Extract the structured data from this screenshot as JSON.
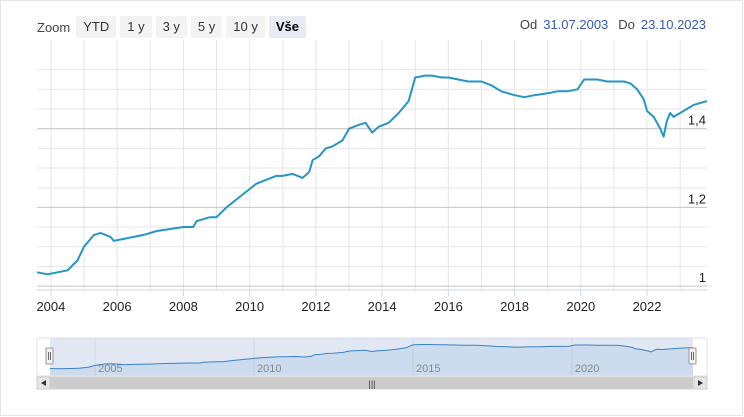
{
  "zoom": {
    "label": "Zoom",
    "buttons": [
      "YTD",
      "1 y",
      "3 y",
      "5 y",
      "10 y",
      "Vše"
    ],
    "active_index": 5
  },
  "range": {
    "from_label": "Od",
    "from_value": "31.07.2003",
    "to_label": "Do",
    "to_value": "23.10.2023"
  },
  "colors": {
    "line": "#2596c4",
    "grid": "#e6e6e6",
    "navigator_fill": "#c9d3ea",
    "navigator_line": "#3a82c4"
  },
  "navigator": {
    "labels": [
      "2005",
      "2010",
      "2015",
      "2020"
    ],
    "scrollbar_grip": "|||"
  },
  "chart_data": {
    "type": "line",
    "title": "",
    "xlabel": "",
    "ylabel": "",
    "x_ticks": [
      "2004",
      "2006",
      "2008",
      "2010",
      "2012",
      "2014",
      "2016",
      "2018",
      "2020",
      "2022"
    ],
    "y_ticks": [
      "1",
      "1,2",
      "1,4"
    ],
    "xlim": [
      2003.58,
      2023.81
    ],
    "ylim": [
      0.99,
      1.6
    ],
    "grid": true,
    "series": [
      {
        "x": [
          2003.58,
          2003.9,
          2004.2,
          2004.5,
          2004.8,
          2005.0,
          2005.3,
          2005.5,
          2005.8,
          2005.9,
          2006.2,
          2006.5,
          2006.8,
          2007.2,
          2007.6,
          2008.0,
          2008.3,
          2008.4,
          2008.6,
          2008.8,
          2009.0,
          2009.3,
          2009.6,
          2009.9,
          2010.2,
          2010.5,
          2010.8,
          2011.0,
          2011.3,
          2011.6,
          2011.8,
          2011.9,
          2012.1,
          2012.3,
          2012.5,
          2012.8,
          2013.0,
          2013.3,
          2013.5,
          2013.7,
          2013.9,
          2014.2,
          2014.5,
          2014.8,
          2014.9,
          2015.0,
          2015.3,
          2015.5,
          2015.8,
          2016.0,
          2016.3,
          2016.6,
          2017.0,
          2017.3,
          2017.6,
          2018.0,
          2018.3,
          2018.6,
          2019.0,
          2019.3,
          2019.6,
          2019.9,
          2020.1,
          2020.3,
          2020.5,
          2020.8,
          2021.0,
          2021.3,
          2021.5,
          2021.7,
          2021.9,
          2022.0,
          2022.2,
          2022.4,
          2022.5,
          2022.6,
          2022.7,
          2022.8,
          2023.0,
          2023.2,
          2023.4,
          2023.6,
          2023.81
        ],
        "y": [
          1.035,
          1.03,
          1.035,
          1.04,
          1.065,
          1.1,
          1.13,
          1.135,
          1.125,
          1.115,
          1.12,
          1.125,
          1.13,
          1.14,
          1.145,
          1.15,
          1.15,
          1.165,
          1.17,
          1.175,
          1.175,
          1.2,
          1.22,
          1.24,
          1.26,
          1.27,
          1.28,
          1.28,
          1.285,
          1.275,
          1.29,
          1.32,
          1.33,
          1.35,
          1.355,
          1.37,
          1.4,
          1.41,
          1.415,
          1.39,
          1.405,
          1.415,
          1.44,
          1.47,
          1.5,
          1.53,
          1.535,
          1.535,
          1.53,
          1.53,
          1.525,
          1.52,
          1.52,
          1.51,
          1.495,
          1.485,
          1.48,
          1.485,
          1.49,
          1.495,
          1.495,
          1.5,
          1.525,
          1.525,
          1.525,
          1.52,
          1.52,
          1.52,
          1.515,
          1.5,
          1.475,
          1.445,
          1.43,
          1.4,
          1.38,
          1.42,
          1.44,
          1.43,
          1.44,
          1.45,
          1.46,
          1.465,
          1.47
        ]
      }
    ]
  }
}
